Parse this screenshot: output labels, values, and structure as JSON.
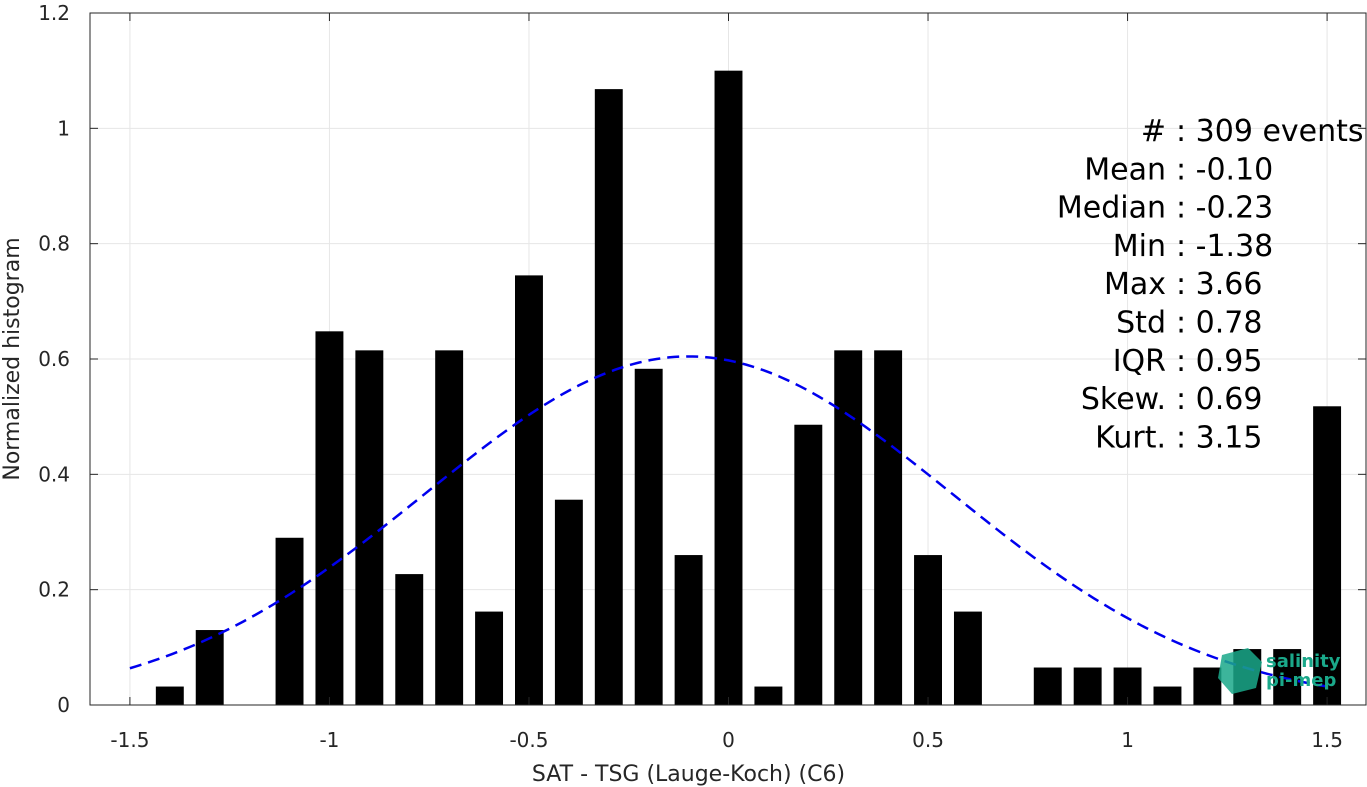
{
  "chart_data": {
    "type": "bar",
    "xlabel": "SAT - TSG (Lauge-Koch) (C6)",
    "ylabel": "Normalized histogram",
    "xlim": [
      -1.6,
      1.6
    ],
    "ylim": [
      0,
      1.2
    ],
    "xticks": [
      -1.5,
      -1,
      -0.5,
      0,
      0.5,
      1,
      1.5
    ],
    "xtick_labels": [
      "-1.5",
      "-1",
      "-0.5",
      "0",
      "0.5",
      "1",
      "1.5"
    ],
    "yticks": [
      0,
      0.2,
      0.4,
      0.6,
      0.8,
      1,
      1.2
    ],
    "ytick_labels": [
      "0",
      "0.2",
      "0.4",
      "0.6",
      "0.8",
      "1",
      "1.2"
    ],
    "grid": true,
    "bar_width": 0.07,
    "x": [
      -1.4,
      -1.3,
      -1.1,
      -1.0,
      -0.9,
      -0.8,
      -0.7,
      -0.6,
      -0.5,
      -0.4,
      -0.3,
      -0.2,
      -0.1,
      0.0,
      0.1,
      0.2,
      0.3,
      0.4,
      0.5,
      0.6,
      0.8,
      0.9,
      1.0,
      1.1,
      1.2,
      1.3,
      1.4,
      1.5
    ],
    "values": [
      0.032,
      0.13,
      0.29,
      0.648,
      0.615,
      0.227,
      0.615,
      0.162,
      0.745,
      0.356,
      1.068,
      0.583,
      0.26,
      1.1,
      0.032,
      0.486,
      0.615,
      0.615,
      0.26,
      0.162,
      0.065,
      0.065,
      0.065,
      0.032,
      0.065,
      0.097,
      0.097,
      0.518
    ],
    "bar_color": "#000000",
    "fit_curve": {
      "style": "dashed",
      "color": "#0000ee",
      "mean": -0.1,
      "std": 0.66,
      "x_range": [
        -1.5,
        1.5
      ]
    },
    "stats": [
      {
        "label": "#  ",
        "value": ": 309 events"
      },
      {
        "label": "Mean",
        "value": ": -0.10"
      },
      {
        "label": "Median",
        "value": ": -0.23"
      },
      {
        "label": "Min",
        "value": ": -1.38"
      },
      {
        "label": "Max",
        "value": ": 3.66"
      },
      {
        "label": "Std",
        "value": ": 0.78"
      },
      {
        "label": "IQR",
        "value": ": 0.95"
      },
      {
        "label": "Skew.",
        "value": ": 0.69"
      },
      {
        "label": "Kurt.",
        "value": ": 3.15"
      }
    ]
  },
  "logo": {
    "line1": "salinity",
    "line2": "pi-mep",
    "color": "#1aa88a"
  }
}
